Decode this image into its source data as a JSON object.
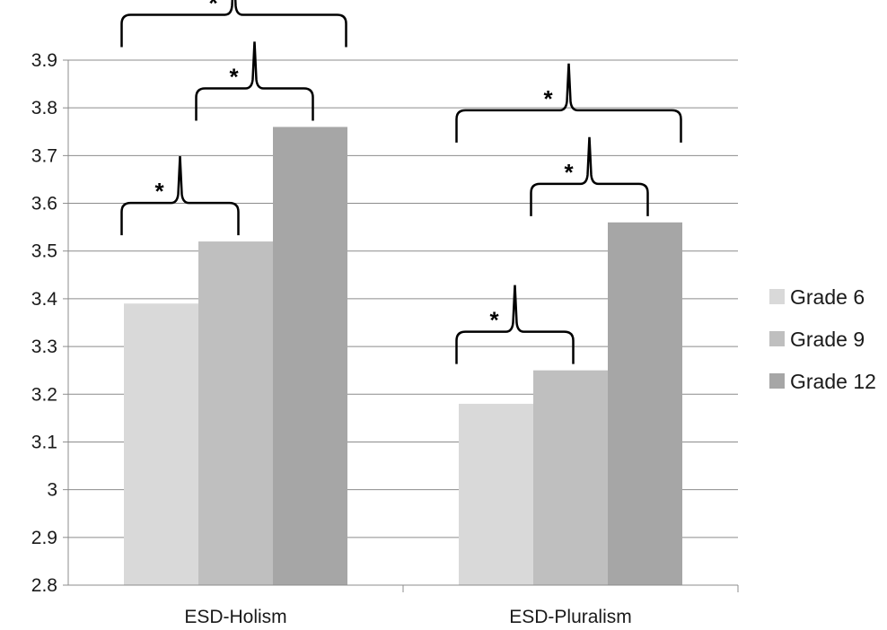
{
  "chart_data": {
    "type": "bar",
    "categories": [
      "ESD-Holism",
      "ESD-Pluralism"
    ],
    "series": [
      {
        "name": "Grade 6",
        "values": [
          3.39,
          3.18
        ],
        "color": "#d9d9d9"
      },
      {
        "name": "Grade 9",
        "values": [
          3.52,
          3.25
        ],
        "color": "#bfbfbf"
      },
      {
        "name": "Grade 12",
        "values": [
          3.76,
          3.56
        ],
        "color": "#a6a6a6"
      }
    ],
    "ylim": [
      2.8,
      3.9
    ],
    "yticks": [
      "2.8",
      "2.9",
      "3",
      "3.1",
      "3.2",
      "3.3",
      "3.4",
      "3.5",
      "3.6",
      "3.7",
      "3.8",
      "3.9"
    ],
    "xlabel": "",
    "ylabel": "",
    "title": "",
    "grid": true,
    "legend_position": "right",
    "significance_marks": [
      {
        "category": 0,
        "from_series": 0,
        "to_series": 1,
        "label": "*"
      },
      {
        "category": 0,
        "from_series": 1,
        "to_series": 2,
        "label": "*"
      },
      {
        "category": 0,
        "from_series": 0,
        "to_series": 2,
        "label": "*"
      },
      {
        "category": 1,
        "from_series": 0,
        "to_series": 1,
        "label": "*"
      },
      {
        "category": 1,
        "from_series": 1,
        "to_series": 2,
        "label": "*"
      },
      {
        "category": 1,
        "from_series": 0,
        "to_series": 2,
        "label": "*"
      }
    ]
  }
}
